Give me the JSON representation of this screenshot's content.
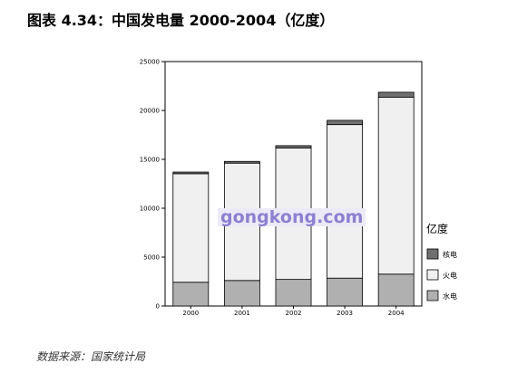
{
  "page": {
    "title": "图表 4.34：中国发电量 2000-2004（亿度）",
    "source": "数据来源：国家统计局",
    "watermark": "gongkong.com"
  },
  "chart_data": {
    "type": "bar",
    "stacked": true,
    "categories": [
      "2000",
      "2001",
      "2002",
      "2003",
      "2004"
    ],
    "series": [
      {
        "name": "水电",
        "color": "#b0b0b0",
        "values": [
          2430,
          2610,
          2720,
          2850,
          3260
        ]
      },
      {
        "name": "火电",
        "color": "#f0f0f0",
        "values": [
          11100,
          12000,
          13430,
          15700,
          18100
        ]
      },
      {
        "name": "核电",
        "color": "#707070",
        "values": [
          170,
          180,
          250,
          440,
          500
        ]
      }
    ],
    "ylim": [
      0,
      25000
    ],
    "yticks": [
      0,
      5000,
      10000,
      15000,
      20000,
      25000
    ],
    "legend_title": "亿度",
    "legend_position": "right",
    "grid": false
  }
}
